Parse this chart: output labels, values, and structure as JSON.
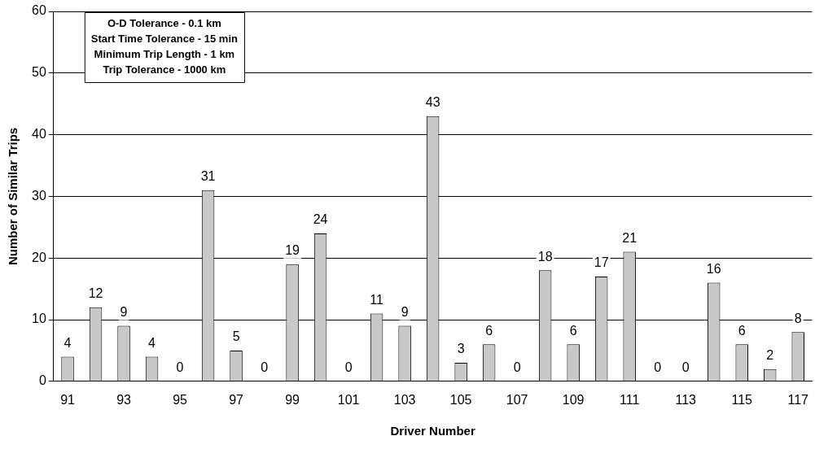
{
  "chart_data": {
    "type": "bar",
    "xlabel": "Driver Number",
    "ylabel": "Number of Similar Trips",
    "categories": [
      "91",
      null,
      "93",
      null,
      "95",
      null,
      "97",
      null,
      "99",
      null,
      "101",
      null,
      "103",
      null,
      "105",
      null,
      "107",
      null,
      "109",
      null,
      "111",
      null,
      "113",
      null,
      "115",
      null,
      "117"
    ],
    "values": [
      4,
      12,
      9,
      4,
      0,
      31,
      5,
      0,
      19,
      24,
      0,
      11,
      9,
      43,
      3,
      6,
      0,
      18,
      6,
      17,
      21,
      0,
      0,
      16,
      6,
      2,
      8
    ],
    "color": "#c8c8c8",
    "ylim": [
      0,
      60
    ],
    "yticks": [
      0,
      10,
      20,
      30,
      40,
      50,
      60
    ],
    "grid": "y",
    "data_labels": true,
    "legend": false,
    "annotations": [
      "O-D Tolerance - 0.1 km",
      "Start Time Tolerance - 15 min",
      "Minimum Trip Length - 1 km",
      "Trip Tolerance - 1000 km"
    ]
  }
}
